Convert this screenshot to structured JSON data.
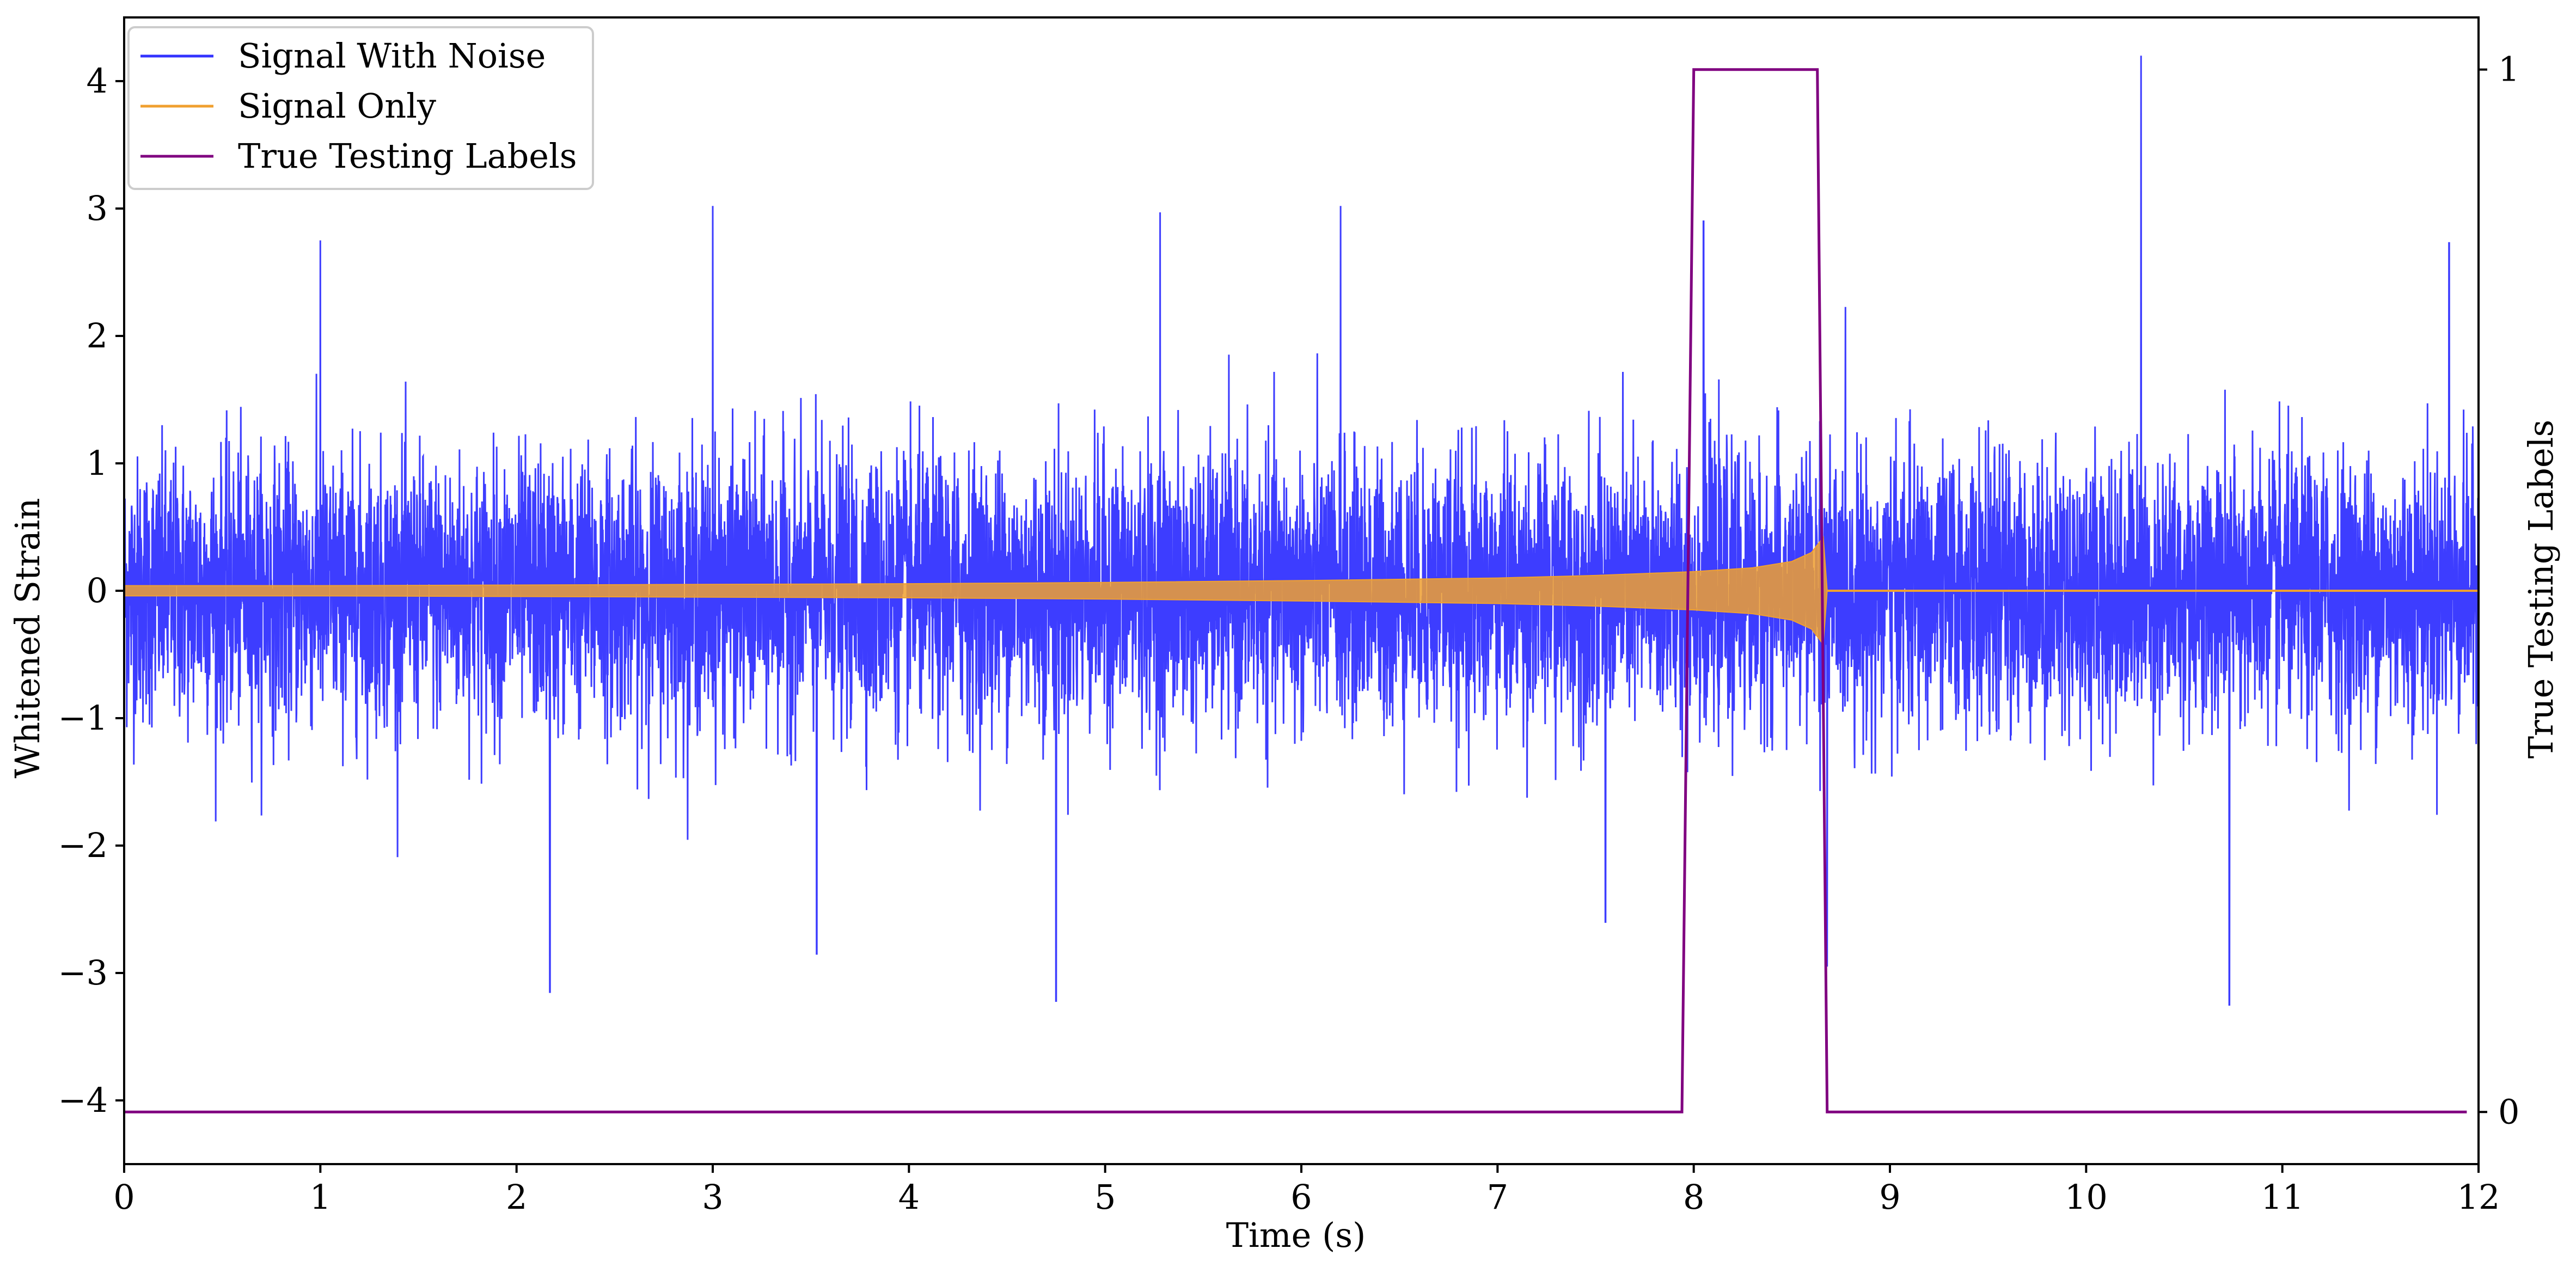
{
  "chart_data": {
    "type": "line",
    "xlabel": "Time (s)",
    "ylabel_left": "Whitened Strain",
    "ylabel_right": "True Testing Labels",
    "xlim": [
      0,
      12
    ],
    "ylim_left": [
      -4.5,
      4.5
    ],
    "ylim_right": [
      -0.05,
      1.05
    ],
    "x_ticks": [
      0,
      1,
      2,
      3,
      4,
      5,
      6,
      7,
      8,
      9,
      10,
      11,
      12
    ],
    "x_tick_labels": [
      "0",
      "1",
      "2",
      "3",
      "4",
      "5",
      "6",
      "7",
      "8",
      "9",
      "10",
      "11",
      "12"
    ],
    "y_left_ticks": [
      -4,
      -3,
      -2,
      -1,
      0,
      1,
      2,
      3,
      4
    ],
    "y_left_tick_labels": [
      "−4",
      "−3",
      "−2",
      "−1",
      "0",
      "1",
      "2",
      "3",
      "4"
    ],
    "y_right_ticks": [
      0,
      1
    ],
    "y_right_tick_labels": [
      "0",
      "1"
    ],
    "grid": false,
    "legend_position": "top-left",
    "legend": [
      "Signal With Noise",
      "Signal Only",
      "True Testing Labels"
    ],
    "series": [
      {
        "name": "Signal With Noise",
        "color": "#3333ff",
        "axis": "left",
        "description_values": {
          "x_range": [
            0,
            12
          ],
          "typical_band": [
            -1.2,
            1.4
          ],
          "peak_max": {
            "x": 10.28,
            "y": 4.2
          },
          "peak_min": {
            "x": 10.73,
            "y": -3.25
          },
          "notable_peaks": [
            [
              1.0,
              2.75
            ],
            [
              2.17,
              -3.15
            ],
            [
              3.0,
              3.02
            ],
            [
              3.53,
              -2.85
            ],
            [
              4.75,
              -3.22
            ],
            [
              5.28,
              2.97
            ],
            [
              6.2,
              3.02
            ],
            [
              7.55,
              -2.6
            ],
            [
              8.05,
              2.9
            ],
            [
              8.68,
              -2.95
            ],
            [
              10.28,
              4.2
            ],
            [
              10.73,
              -3.25
            ],
            [
              11.85,
              2.73
            ]
          ]
        }
      },
      {
        "name": "Signal Only",
        "color": "#f0a030",
        "axis": "left",
        "envelope": [
          [
            0,
            0.04
          ],
          [
            1,
            0.04
          ],
          [
            2,
            0.045
          ],
          [
            3,
            0.05
          ],
          [
            4,
            0.055
          ],
          [
            5,
            0.065
          ],
          [
            6,
            0.08
          ],
          [
            7,
            0.1
          ],
          [
            7.5,
            0.12
          ],
          [
            8,
            0.15
          ],
          [
            8.3,
            0.18
          ],
          [
            8.5,
            0.23
          ],
          [
            8.6,
            0.3
          ],
          [
            8.66,
            0.42
          ],
          [
            8.68,
            0.0
          ],
          [
            12,
            0.0
          ]
        ],
        "merger_time": 8.68
      },
      {
        "name": "True Testing Labels",
        "color": "#800080",
        "axis": "right",
        "x": [
          0,
          7.94,
          8.0,
          8.63,
          8.68,
          11.94
        ],
        "values": [
          0,
          0,
          1,
          1,
          0,
          0
        ]
      }
    ]
  }
}
